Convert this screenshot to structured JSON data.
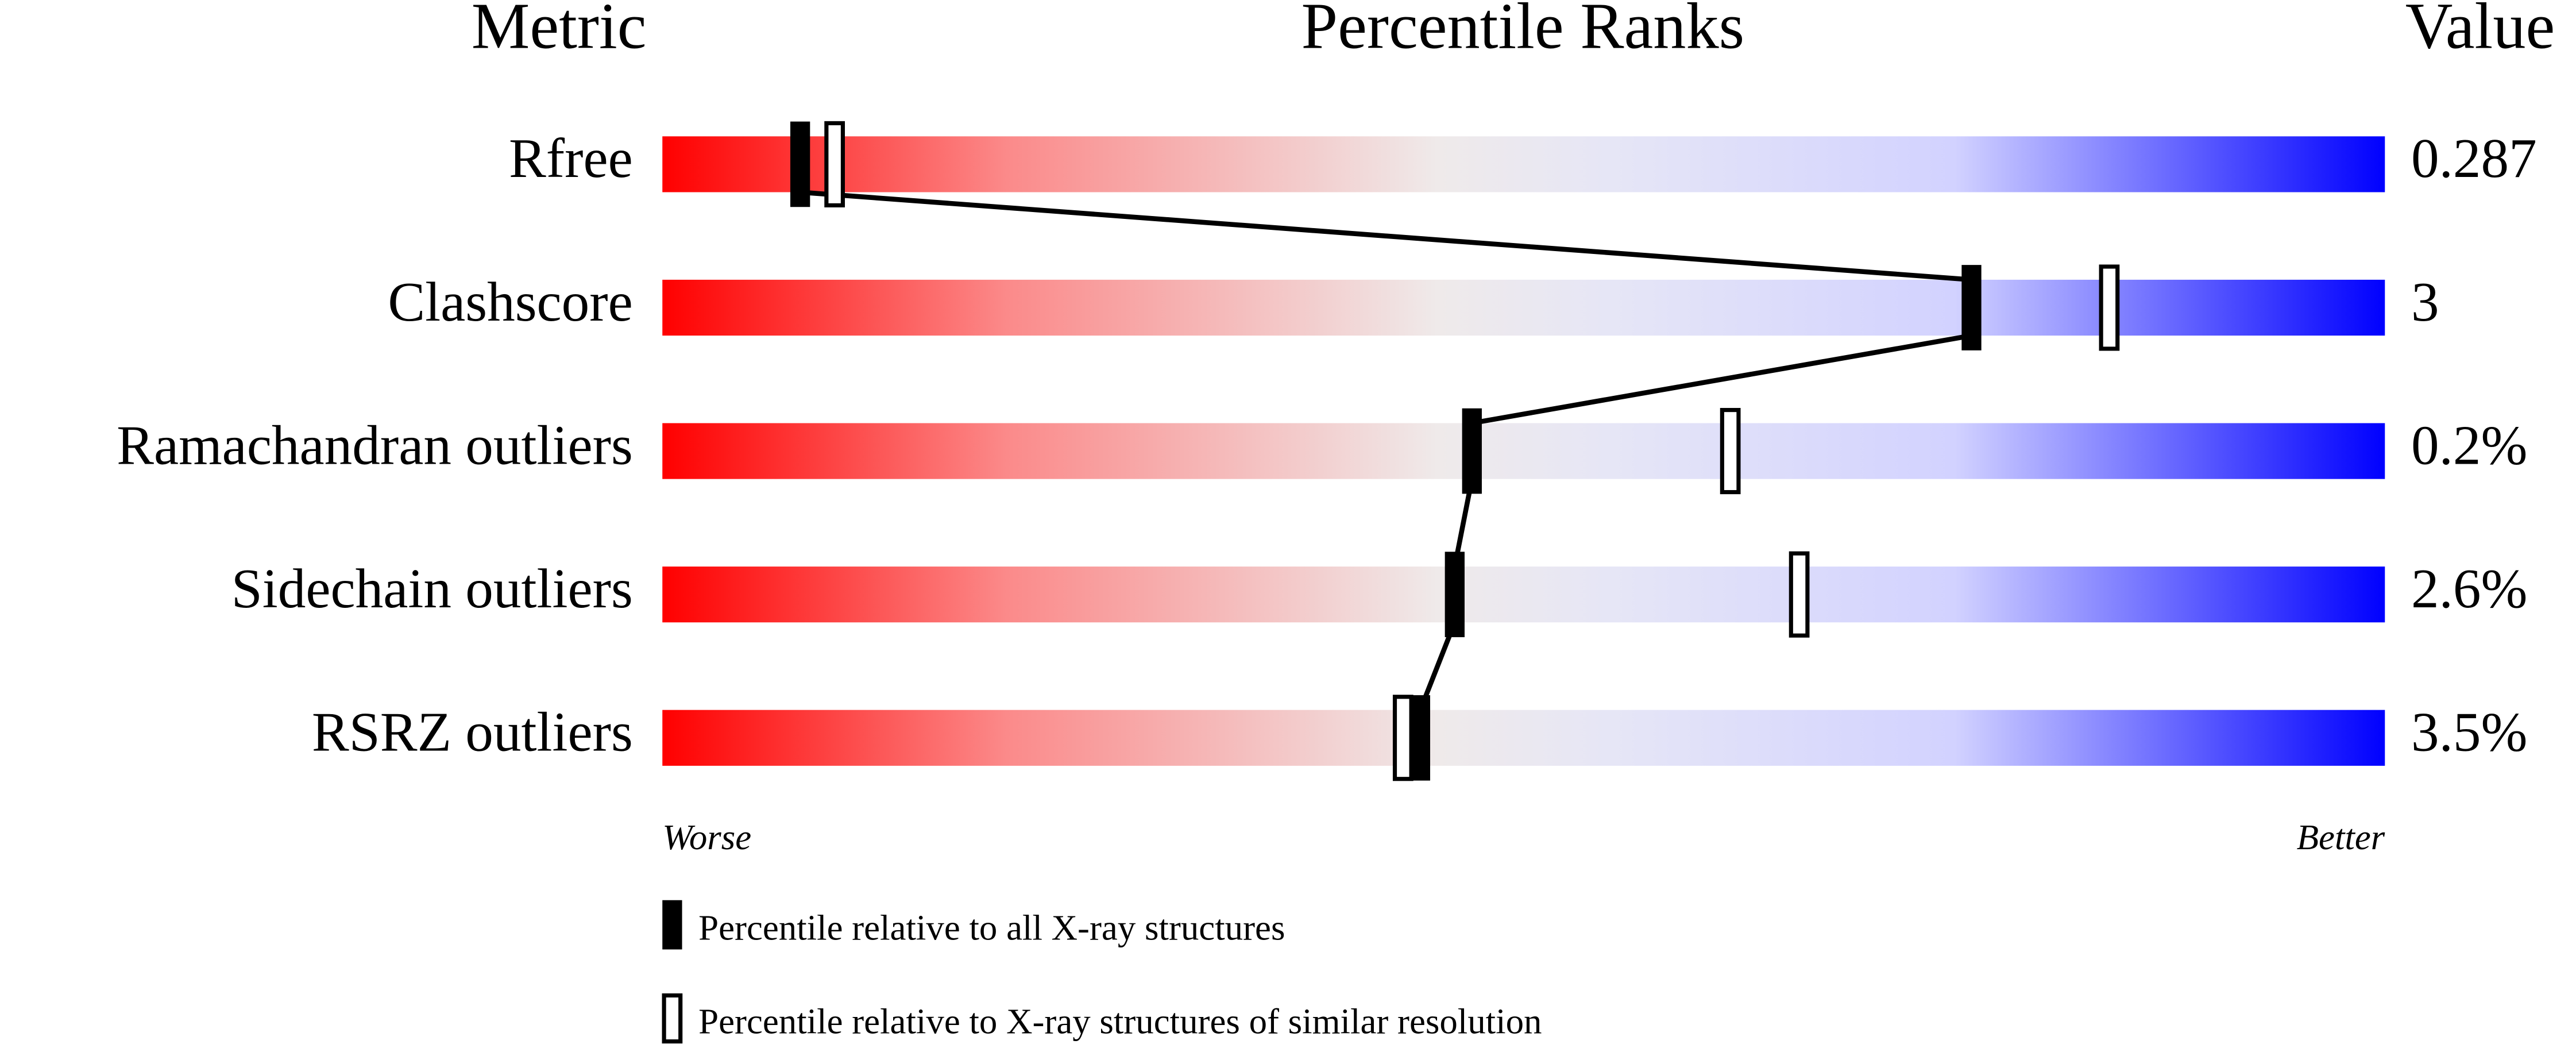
{
  "chart_data": {
    "type": "percentile",
    "headers": {
      "metric": "Metric",
      "ranks": "Percentile Ranks",
      "value": "Value"
    },
    "categories": [
      "Rfree",
      "Clashscore",
      "Ramachandran outliers",
      "Sidechain outliers",
      "RSRZ outliers"
    ],
    "metric_values": [
      "0.287",
      "3",
      "0.2%",
      "2.6%",
      "3.5%"
    ],
    "series": [
      {
        "name": "Percentile relative to all X-ray structures",
        "color": "#000000",
        "marker": "filled",
        "values": [
          8,
          76,
          47,
          46,
          44
        ]
      },
      {
        "name": "Percentile relative to X-ray structures of similar resolution",
        "color": "#000000",
        "marker": "open",
        "values": [
          10,
          84,
          62,
          66,
          43
        ]
      }
    ],
    "xlim": [
      0,
      100
    ],
    "worse": "Worse",
    "better": "Better"
  }
}
